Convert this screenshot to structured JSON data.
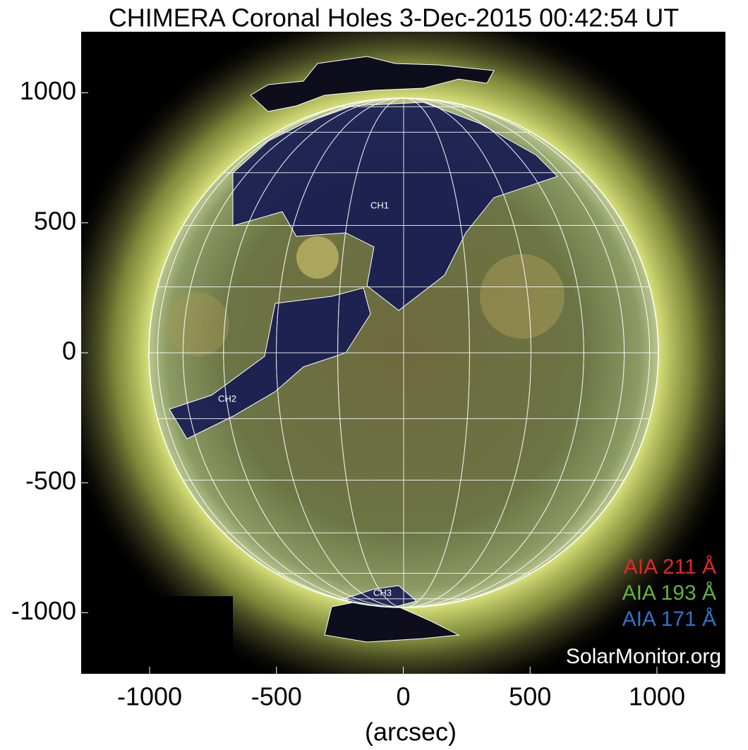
{
  "chart_data": {
    "type": "image",
    "title": "CHIMERA Coronal Holes 3-Dec-2015 00:42:54 UT",
    "x_label": "(arcsec)",
    "xlim": [
      -1270,
      1270
    ],
    "ylim": [
      -1235,
      1235
    ],
    "xticks": [
      -1000,
      -500,
      0,
      500,
      1000
    ],
    "yticks": [
      -1000,
      -500,
      0,
      500,
      1000
    ],
    "region_labels": [
      "CH1",
      "CH2",
      "CH3"
    ],
    "legend": [
      {
        "name": "AIA 211 Å",
        "color": "#e3262b"
      },
      {
        "name": "AIA 193 Å",
        "color": "#63b43c"
      },
      {
        "name": "AIA 171 Å",
        "color": "#2f74c6"
      }
    ],
    "credit": "SolarMonitor.org"
  }
}
